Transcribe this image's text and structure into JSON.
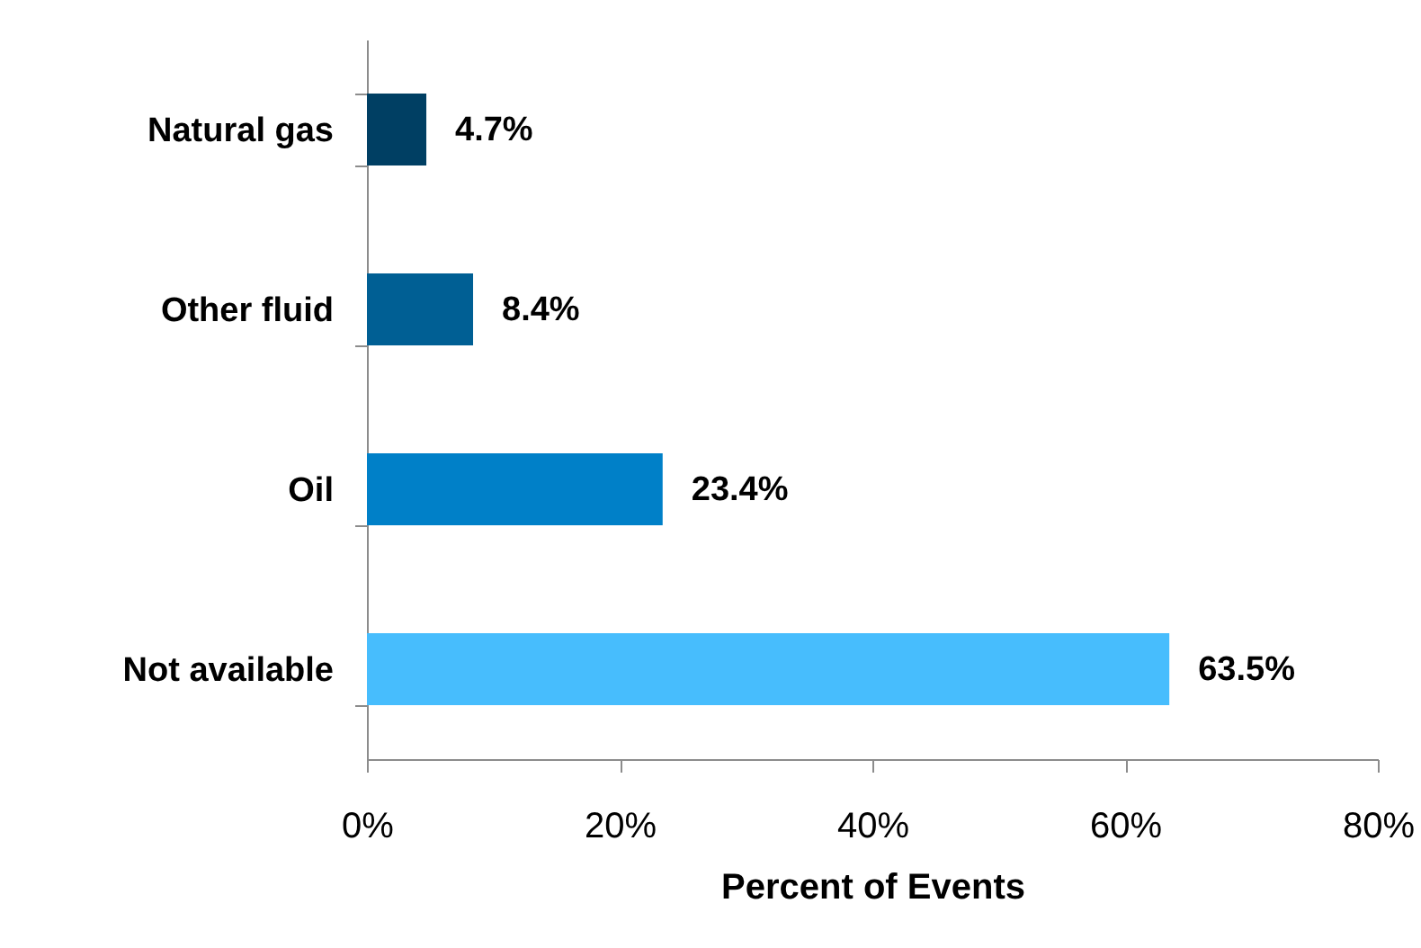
{
  "chart_data": {
    "type": "bar",
    "orientation": "horizontal",
    "xlabel": "Percent of Events",
    "categories": [
      "Natural gas",
      "Other fluid",
      "Oil",
      "Not available"
    ],
    "values": [
      4.7,
      8.4,
      23.4,
      63.5
    ],
    "colors": [
      "#003f63",
      "#005f94",
      "#0080c8",
      "#47bdfd"
    ],
    "value_labels": [
      "4.7%",
      "8.4%",
      "23.4%",
      "63.5%"
    ],
    "xlim": [
      0,
      80
    ],
    "xticks": [
      {
        "value": 0,
        "label": "0%"
      },
      {
        "value": 20,
        "label": "20%"
      },
      {
        "value": 40,
        "label": "40%"
      },
      {
        "value": 60,
        "label": "60%"
      },
      {
        "value": 80,
        "label": "80%"
      }
    ]
  }
}
